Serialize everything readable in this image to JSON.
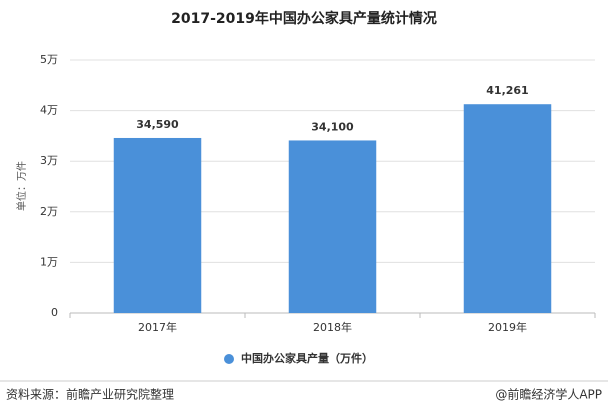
{
  "chart_data": {
    "type": "bar",
    "title": "2017-2019年中国办公家具产量统计情况",
    "y_label": "单位：万件",
    "categories": [
      "2017年",
      "2018年",
      "2019年"
    ],
    "series": [
      {
        "name": "中国办公家具产量（万件）",
        "color": "#4a90d9",
        "values": [
          34590,
          34100,
          41261
        ],
        "value_labels": [
          "34,590",
          "34,100",
          "41,261"
        ]
      }
    ],
    "ylim": [
      0,
      50000
    ],
    "yticks": [
      0,
      {
        "value": 10000,
        "label": "1万"
      },
      {
        "value": 20000,
        "label": "2万"
      },
      {
        "value": 30000,
        "label": "3万"
      },
      {
        "value": 40000,
        "label": "4万"
      },
      {
        "value": 50000,
        "label": "5万"
      }
    ],
    "grid": true
  },
  "source": "资料来源：前瞻产业研究院整理",
  "credit": "@前瞻经济学人APP"
}
